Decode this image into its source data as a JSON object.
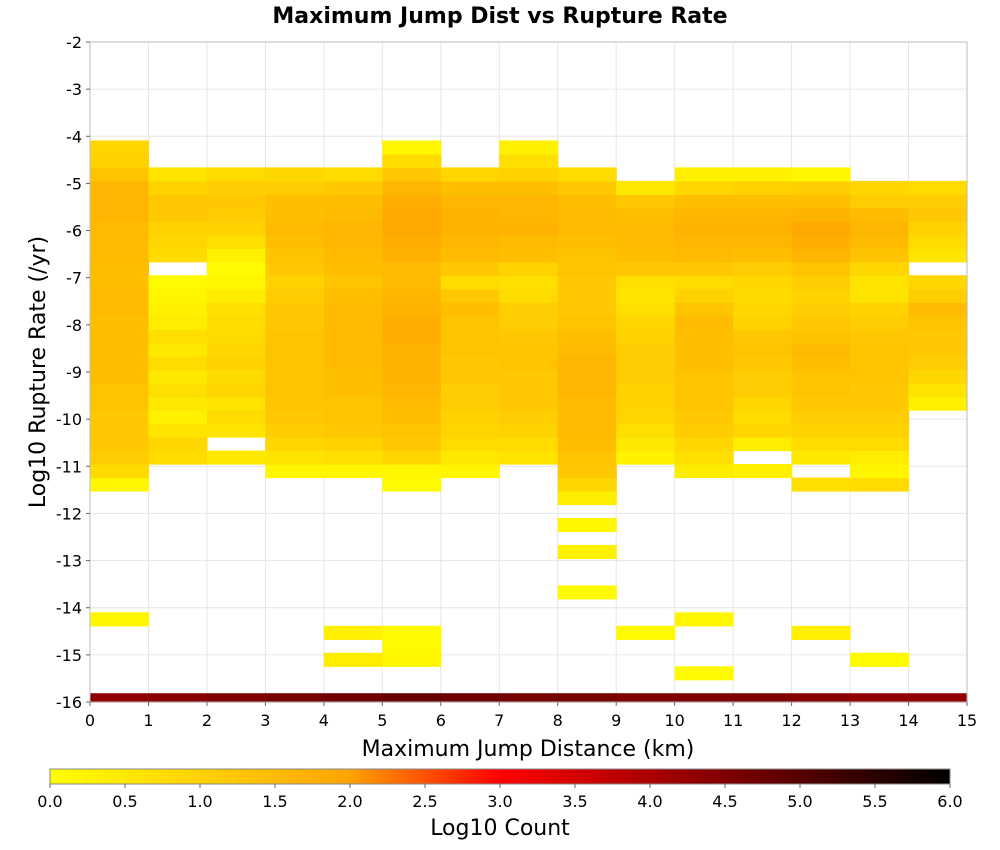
{
  "chart_data": {
    "type": "heatmap",
    "title": "Maximum Jump Dist vs Rupture Rate",
    "xlabel": "Maximum Jump Distance (km)",
    "ylabel": "Log10 Rupture Rate (/yr)",
    "xlim": [
      0,
      15
    ],
    "ylim": [
      -16,
      -2
    ],
    "x_ticks": [
      "0",
      "1",
      "2",
      "3",
      "4",
      "5",
      "6",
      "7",
      "8",
      "9",
      "10",
      "11",
      "12",
      "13",
      "14",
      "15"
    ],
    "y_ticks": [
      "-2",
      "-3",
      "-4",
      "-5",
      "-6",
      "-7",
      "-8",
      "-9",
      "-10",
      "-11",
      "-12",
      "-13",
      "-14",
      "-15",
      "-16"
    ],
    "grid": true,
    "bin_width": 1,
    "bin_height": 0.286,
    "y_bin_start": -16.1,
    "colorbar": {
      "label": "Log10 Count",
      "range": [
        0,
        6
      ],
      "ticks": [
        "0.0",
        "0.5",
        "1.0",
        "1.5",
        "2.0",
        "2.5",
        "3.0",
        "3.5",
        "4.0",
        "4.5",
        "5.0",
        "5.5",
        "6.0"
      ],
      "colors": [
        "#ffff00",
        "#ffa500",
        "#ff0000",
        "#000000"
      ],
      "stops": [
        0,
        0.33,
        0.5,
        1
      ]
    },
    "columns": [
      {
        "x": 0,
        "top_row": 44,
        "counts": [
          4.3,
          0,
          0,
          0,
          0,
          0,
          0.2,
          0,
          0,
          0,
          0,
          0,
          0,
          0,
          0,
          0,
          0.2,
          0.8,
          1.1,
          1.2,
          1.2,
          1.2,
          1.3,
          1.3,
          1.4,
          1.4,
          1.4,
          1.4,
          1.4,
          1.5,
          1.5,
          1.4,
          1.4,
          1.5,
          1.5,
          1.5,
          1.6,
          1.6,
          1.6,
          1.3,
          1.0,
          0.9
        ]
      },
      {
        "x": 1,
        "top_row": 41,
        "counts": [
          4.4,
          0,
          0,
          0,
          0,
          0,
          0,
          0,
          0,
          0,
          0,
          0,
          0,
          0,
          0,
          0,
          0,
          0,
          0.8,
          0.9,
          0.6,
          0.3,
          0.5,
          0.7,
          0.5,
          0.8,
          0.5,
          0.7,
          0.4,
          0.3,
          0.2,
          0.1,
          0,
          0.8,
          0.9,
          1.0,
          1.2,
          1.2,
          1.0,
          0.6
        ]
      },
      {
        "x": 2,
        "top_row": 41,
        "counts": [
          4.5,
          0,
          0,
          0,
          0,
          0,
          0,
          0,
          0,
          0,
          0,
          0,
          0,
          0,
          0,
          0,
          0,
          0,
          0.5,
          0,
          0.6,
          0.8,
          0.6,
          0.9,
          0.8,
          1.0,
          0.9,
          0.8,
          0.8,
          0.7,
          0.4,
          0.2,
          0.1,
          0.3,
          0.7,
          1.0,
          1.1,
          1.2,
          1.1,
          0.8
        ]
      },
      {
        "x": 3,
        "top_row": 41,
        "counts": [
          4.6,
          0,
          0,
          0,
          0,
          0,
          0,
          0,
          0,
          0,
          0,
          0,
          0,
          0,
          0,
          0,
          0,
          0.2,
          0.6,
          0.9,
          1.1,
          1.2,
          1.3,
          1.3,
          1.3,
          1.3,
          1.3,
          1.3,
          1.2,
          1.2,
          1.1,
          1.0,
          1.2,
          1.3,
          1.4,
          1.5,
          1.4,
          1.4,
          1.1,
          0.9
        ]
      },
      {
        "x": 4,
        "top_row": 41,
        "counts": [
          4.7,
          0,
          0,
          0.4,
          0,
          0.3,
          0,
          0,
          0,
          0,
          0,
          0,
          0,
          0,
          0,
          0,
          0,
          0.2,
          0.7,
          1.0,
          1.2,
          1.3,
          1.3,
          1.4,
          1.4,
          1.5,
          1.5,
          1.5,
          1.5,
          1.5,
          1.4,
          1.3,
          1.4,
          1.5,
          1.6,
          1.6,
          1.5,
          1.4,
          1.2,
          0.8
        ]
      },
      {
        "x": 5,
        "top_row": 42,
        "counts": [
          4.8,
          0,
          0,
          0.2,
          0.1,
          0.1,
          0,
          0,
          0,
          0,
          0,
          0,
          0,
          0,
          0,
          0,
          0.1,
          0.2,
          0.9,
          1.2,
          1.3,
          1.4,
          1.5,
          1.6,
          1.7,
          1.7,
          1.7,
          1.8,
          1.8,
          1.7,
          1.6,
          1.5,
          1.5,
          1.7,
          1.8,
          1.9,
          1.9,
          1.8,
          1.6,
          1.2,
          0.8,
          0.2
        ]
      },
      {
        "x": 6,
        "top_row": 41,
        "counts": [
          4.7,
          0,
          0,
          0,
          0,
          0,
          0,
          0,
          0,
          0,
          0,
          0,
          0,
          0,
          0,
          0,
          0,
          0.2,
          0.5,
          0.8,
          0.9,
          1.0,
          1.1,
          1.1,
          1.2,
          1.2,
          1.3,
          1.3,
          1.3,
          1.4,
          1.2,
          0.8,
          1.2,
          1.5,
          1.6,
          1.7,
          1.7,
          1.6,
          1.4,
          0.9
        ]
      },
      {
        "x": 7,
        "top_row": 42,
        "counts": [
          4.6,
          0,
          0,
          0,
          0,
          0,
          0,
          0,
          0,
          0,
          0,
          0,
          0,
          0,
          0,
          0,
          0,
          0,
          0.6,
          0.8,
          1.0,
          1.1,
          1.2,
          1.2,
          1.2,
          1.3,
          1.3,
          1.2,
          1.1,
          1.1,
          0.8,
          0.7,
          1.0,
          1.4,
          1.5,
          1.7,
          1.6,
          1.6,
          1.4,
          1.0,
          0.7,
          0.3
        ]
      },
      {
        "x": 8,
        "top_row": 41,
        "counts": [
          4.6,
          0,
          0,
          0,
          0,
          0,
          0,
          0,
          0.1,
          0,
          0,
          0.3,
          0,
          0.2,
          0,
          0.4,
          0.9,
          1.2,
          1.3,
          1.4,
          1.5,
          1.5,
          1.5,
          1.6,
          1.6,
          1.6,
          1.5,
          1.4,
          1.3,
          1.2,
          1.2,
          1.2,
          1.3,
          1.3,
          1.4,
          1.5,
          1.5,
          1.4,
          1.2,
          0.8
        ]
      },
      {
        "x": 9,
        "top_row": 40,
        "counts": [
          4.5,
          0,
          0,
          0,
          0,
          0.1,
          0,
          0,
          0,
          0,
          0,
          0,
          0,
          0,
          0,
          0,
          0,
          0,
          0.3,
          0.5,
          0.7,
          0.9,
          1.0,
          1.0,
          1.1,
          1.1,
          1.1,
          1.0,
          0.9,
          0.7,
          0.6,
          0.7,
          1.2,
          1.4,
          1.5,
          1.5,
          1.4,
          1.2,
          0.5
        ]
      },
      {
        "x": 10,
        "top_row": 41,
        "counts": [
          4.5,
          0,
          0.1,
          0,
          0,
          0,
          0.2,
          0,
          0,
          0,
          0,
          0,
          0,
          0,
          0,
          0,
          0,
          0.4,
          0.7,
          0.9,
          1.1,
          1.2,
          1.3,
          1.3,
          1.3,
          1.4,
          1.4,
          1.4,
          1.5,
          1.3,
          1.0,
          0.8,
          1.2,
          1.5,
          1.6,
          1.7,
          1.6,
          1.4,
          0.9,
          0.3
        ]
      },
      {
        "x": 11,
        "top_row": 41,
        "counts": [
          4.5,
          0,
          0,
          0,
          0,
          0,
          0,
          0,
          0,
          0,
          0,
          0,
          0,
          0,
          0,
          0,
          0,
          0.3,
          0,
          0.4,
          0.9,
          0.8,
          0.9,
          1.1,
          1.1,
          1.2,
          1.3,
          1.2,
          1.0,
          0.9,
          0.8,
          0.9,
          1.1,
          1.4,
          1.6,
          1.7,
          1.6,
          1.4,
          1.0,
          0.3
        ]
      },
      {
        "x": 12,
        "top_row": 41,
        "counts": [
          4.4,
          0,
          0,
          0,
          0,
          0.3,
          0,
          0,
          0,
          0,
          0,
          0,
          0,
          0,
          0,
          0,
          0.7,
          0,
          0.5,
          0.8,
          1.0,
          1.1,
          1.2,
          1.3,
          1.3,
          1.4,
          1.5,
          1.3,
          1.2,
          1.1,
          1.0,
          1.1,
          1.3,
          1.6,
          1.8,
          1.9,
          1.7,
          1.4,
          1.1,
          0.2
        ]
      },
      {
        "x": 13,
        "top_row": 40,
        "counts": [
          4.3,
          0,
          0,
          0.1,
          0,
          0,
          0,
          0,
          0,
          0,
          0,
          0,
          0,
          0,
          0,
          0,
          0.8,
          0.2,
          0.4,
          0.8,
          1.0,
          1.1,
          1.2,
          1.2,
          1.3,
          1.3,
          1.3,
          1.2,
          1.1,
          1.0,
          0.6,
          0.6,
          0.9,
          1.3,
          1.5,
          1.6,
          1.5,
          1.1,
          0.9
        ]
      },
      {
        "x": 14,
        "top_row": 40,
        "counts": [
          4.3,
          0,
          0,
          0,
          0,
          0,
          0,
          0,
          0,
          0,
          0,
          0,
          0,
          0,
          0,
          0,
          0,
          0,
          0,
          0,
          0,
          0,
          0.3,
          0.6,
          0.9,
          1.1,
          1.2,
          1.2,
          1.3,
          1.5,
          1.1,
          0.9,
          0,
          0.6,
          0.8,
          1.0,
          1.2,
          1.1,
          0.8
        ]
      }
    ]
  }
}
